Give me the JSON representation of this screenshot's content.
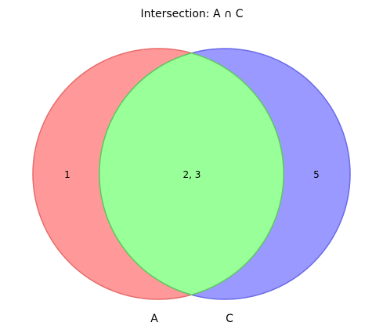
{
  "title": "Intersection: A ∩ C",
  "sets": [
    {
      "name": "A",
      "color": "#ff6666"
    },
    {
      "name": "C",
      "color": "#6666ff"
    }
  ],
  "regions": {
    "a_only": "1",
    "intersection": "2, 3",
    "c_only": "5"
  },
  "colors": {
    "a_fill": "#ff9999",
    "a_stroke": "#e86a6a",
    "c_fill": "#9999ff",
    "c_stroke": "#6a6ae8",
    "intersection_fill": "#99ff99",
    "intersection_stroke": "#5ec85e"
  }
}
